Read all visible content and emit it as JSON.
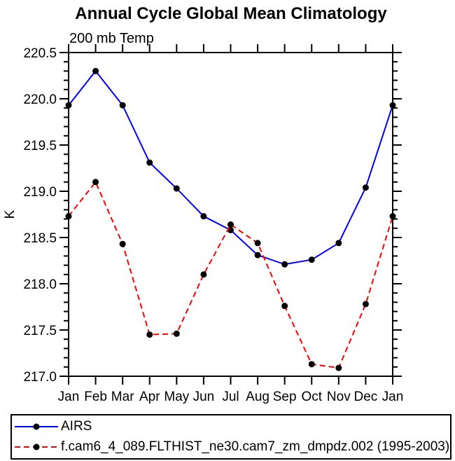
{
  "title": "Annual Cycle Global Mean Climatology",
  "subtitle": "200 mb Temp",
  "chart_data": {
    "type": "line",
    "categories": [
      "Jan",
      "Feb",
      "Mar",
      "Apr",
      "May",
      "Jun",
      "Jul",
      "Aug",
      "Sep",
      "Oct",
      "Nov",
      "Dec",
      "Jan"
    ],
    "series": [
      {
        "name": "AIRS",
        "color": "#0000ff",
        "line_style": "solid",
        "marker": "filled-circle",
        "marker_color": "#000000",
        "values": [
          219.93,
          220.3,
          219.93,
          219.31,
          219.03,
          218.73,
          218.58,
          218.31,
          218.21,
          218.26,
          218.44,
          219.04,
          219.93
        ]
      },
      {
        "name": "f.cam6_4_089.FLTHIST_ne30.cam7_zm_dmpdz.002 (1995-2003)",
        "color": "#ff0000",
        "line_style": "dashed",
        "marker": "filled-circle",
        "marker_color": "#000000",
        "values": [
          218.73,
          219.1,
          218.43,
          217.45,
          217.46,
          218.1,
          218.64,
          218.44,
          217.76,
          217.13,
          217.09,
          217.78,
          218.73
        ]
      }
    ],
    "xlabel": "",
    "ylabel": "K",
    "ylim": [
      217.0,
      220.5
    ],
    "y_major_step": 0.5,
    "y_minor_step": 0.1,
    "y_tick_labels": [
      "217.0",
      "217.5",
      "218.0",
      "218.5",
      "219.0",
      "219.5",
      "220.0",
      "220.5"
    ],
    "x_minor_ticks": false,
    "grid": false,
    "legend_position": "bottom",
    "axis_color": "#000000",
    "background": "#ffffff"
  }
}
